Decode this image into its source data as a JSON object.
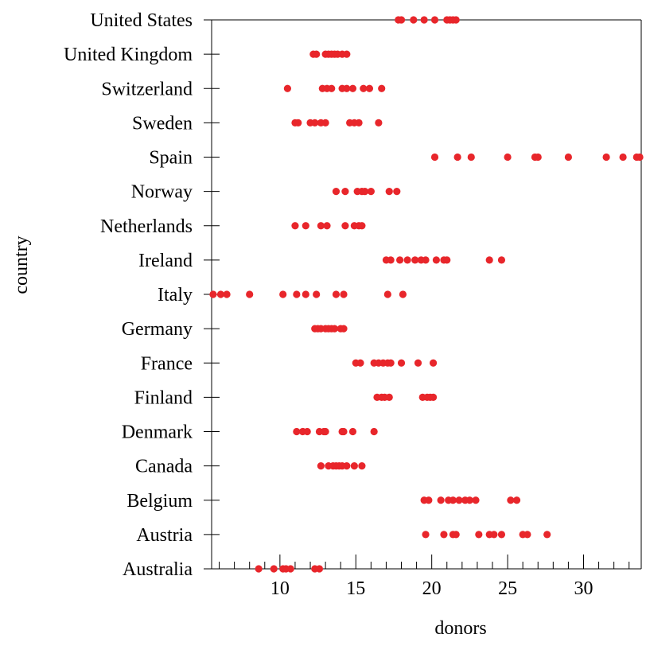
{
  "chart_data": {
    "type": "scatter",
    "xlabel": "donors",
    "ylabel": "country",
    "xlim": [
      5.5,
      33.8
    ],
    "x_major_ticks": [
      10,
      15,
      20,
      25,
      30
    ],
    "x_minor_step": 1,
    "categories": [
      "Australia",
      "Austria",
      "Belgium",
      "Canada",
      "Denmark",
      "Finland",
      "France",
      "Germany",
      "Italy",
      "Ireland",
      "Netherlands",
      "Norway",
      "Spain",
      "Sweden",
      "Switzerland",
      "United Kingdom",
      "United States"
    ],
    "point_color": "#e8262b",
    "series": [
      {
        "values": [
          [
            "United States",
            17.8
          ],
          [
            "United States",
            18.0
          ],
          [
            "United States",
            18.8
          ],
          [
            "United States",
            19.5
          ],
          [
            "United States",
            20.2
          ],
          [
            "United States",
            21.0
          ],
          [
            "United States",
            21.2
          ],
          [
            "United States",
            21.4
          ],
          [
            "United States",
            21.6
          ],
          [
            "United Kingdom",
            12.2
          ],
          [
            "United Kingdom",
            12.4
          ],
          [
            "United Kingdom",
            13.0
          ],
          [
            "United Kingdom",
            13.2
          ],
          [
            "United Kingdom",
            13.4
          ],
          [
            "United Kingdom",
            13.6
          ],
          [
            "United Kingdom",
            13.8
          ],
          [
            "United Kingdom",
            14.1
          ],
          [
            "United Kingdom",
            14.4
          ],
          [
            "Switzerland",
            10.5
          ],
          [
            "Switzerland",
            12.8
          ],
          [
            "Switzerland",
            13.1
          ],
          [
            "Switzerland",
            13.4
          ],
          [
            "Switzerland",
            14.1
          ],
          [
            "Switzerland",
            14.4
          ],
          [
            "Switzerland",
            14.8
          ],
          [
            "Switzerland",
            15.5
          ],
          [
            "Switzerland",
            15.9
          ],
          [
            "Switzerland",
            16.7
          ],
          [
            "Sweden",
            11.0
          ],
          [
            "Sweden",
            11.2
          ],
          [
            "Sweden",
            12.0
          ],
          [
            "Sweden",
            12.3
          ],
          [
            "Sweden",
            12.7
          ],
          [
            "Sweden",
            13.0
          ],
          [
            "Sweden",
            14.6
          ],
          [
            "Sweden",
            14.9
          ],
          [
            "Sweden",
            15.2
          ],
          [
            "Sweden",
            16.5
          ],
          [
            "Spain",
            20.2
          ],
          [
            "Spain",
            21.7
          ],
          [
            "Spain",
            22.6
          ],
          [
            "Spain",
            25.0
          ],
          [
            "Spain",
            26.8
          ],
          [
            "Spain",
            27.0
          ],
          [
            "Spain",
            29.0
          ],
          [
            "Spain",
            31.5
          ],
          [
            "Spain",
            32.6
          ],
          [
            "Spain",
            33.5
          ],
          [
            "Spain",
            33.7
          ],
          [
            "Norway",
            13.7
          ],
          [
            "Norway",
            14.3
          ],
          [
            "Norway",
            15.1
          ],
          [
            "Norway",
            15.4
          ],
          [
            "Norway",
            15.6
          ],
          [
            "Norway",
            16.0
          ],
          [
            "Norway",
            17.2
          ],
          [
            "Norway",
            17.7
          ],
          [
            "Netherlands",
            11.0
          ],
          [
            "Netherlands",
            11.7
          ],
          [
            "Netherlands",
            12.7
          ],
          [
            "Netherlands",
            13.1
          ],
          [
            "Netherlands",
            14.3
          ],
          [
            "Netherlands",
            14.9
          ],
          [
            "Netherlands",
            15.2
          ],
          [
            "Netherlands",
            15.4
          ],
          [
            "Ireland",
            17.0
          ],
          [
            "Ireland",
            17.3
          ],
          [
            "Ireland",
            17.9
          ],
          [
            "Ireland",
            18.4
          ],
          [
            "Ireland",
            18.9
          ],
          [
            "Ireland",
            19.3
          ],
          [
            "Ireland",
            19.6
          ],
          [
            "Ireland",
            20.3
          ],
          [
            "Ireland",
            20.8
          ],
          [
            "Ireland",
            21.0
          ],
          [
            "Ireland",
            23.8
          ],
          [
            "Ireland",
            24.6
          ],
          [
            "Italy",
            5.6
          ],
          [
            "Italy",
            6.1
          ],
          [
            "Italy",
            6.5
          ],
          [
            "Italy",
            8.0
          ],
          [
            "Italy",
            10.2
          ],
          [
            "Italy",
            11.1
          ],
          [
            "Italy",
            11.7
          ],
          [
            "Italy",
            12.4
          ],
          [
            "Italy",
            13.7
          ],
          [
            "Italy",
            14.2
          ],
          [
            "Italy",
            17.1
          ],
          [
            "Italy",
            18.1
          ],
          [
            "Germany",
            12.3
          ],
          [
            "Germany",
            12.5
          ],
          [
            "Germany",
            12.7
          ],
          [
            "Germany",
            13.0
          ],
          [
            "Germany",
            13.2
          ],
          [
            "Germany",
            13.4
          ],
          [
            "Germany",
            13.6
          ],
          [
            "Germany",
            14.0
          ],
          [
            "Germany",
            14.2
          ],
          [
            "France",
            15.0
          ],
          [
            "France",
            15.3
          ],
          [
            "France",
            16.2
          ],
          [
            "France",
            16.5
          ],
          [
            "France",
            16.8
          ],
          [
            "France",
            17.1
          ],
          [
            "France",
            17.3
          ],
          [
            "France",
            18.0
          ],
          [
            "France",
            19.1
          ],
          [
            "France",
            20.1
          ],
          [
            "Finland",
            16.4
          ],
          [
            "Finland",
            16.7
          ],
          [
            "Finland",
            16.9
          ],
          [
            "Finland",
            17.2
          ],
          [
            "Finland",
            19.4
          ],
          [
            "Finland",
            19.7
          ],
          [
            "Finland",
            19.9
          ],
          [
            "Finland",
            20.1
          ],
          [
            "Denmark",
            11.1
          ],
          [
            "Denmark",
            11.5
          ],
          [
            "Denmark",
            11.8
          ],
          [
            "Denmark",
            12.6
          ],
          [
            "Denmark",
            12.9
          ],
          [
            "Denmark",
            13.0
          ],
          [
            "Denmark",
            14.1
          ],
          [
            "Denmark",
            14.2
          ],
          [
            "Denmark",
            14.8
          ],
          [
            "Denmark",
            16.2
          ],
          [
            "Canada",
            12.7
          ],
          [
            "Canada",
            13.2
          ],
          [
            "Canada",
            13.5
          ],
          [
            "Canada",
            13.7
          ],
          [
            "Canada",
            13.9
          ],
          [
            "Canada",
            14.1
          ],
          [
            "Canada",
            14.4
          ],
          [
            "Canada",
            14.9
          ],
          [
            "Canada",
            15.4
          ],
          [
            "Belgium",
            19.5
          ],
          [
            "Belgium",
            19.8
          ],
          [
            "Belgium",
            20.6
          ],
          [
            "Belgium",
            21.1
          ],
          [
            "Belgium",
            21.4
          ],
          [
            "Belgium",
            21.8
          ],
          [
            "Belgium",
            22.2
          ],
          [
            "Belgium",
            22.5
          ],
          [
            "Belgium",
            22.9
          ],
          [
            "Belgium",
            25.2
          ],
          [
            "Belgium",
            25.6
          ],
          [
            "Austria",
            19.6
          ],
          [
            "Austria",
            20.8
          ],
          [
            "Austria",
            21.4
          ],
          [
            "Austria",
            21.6
          ],
          [
            "Austria",
            23.1
          ],
          [
            "Austria",
            23.8
          ],
          [
            "Austria",
            24.1
          ],
          [
            "Austria",
            24.6
          ],
          [
            "Austria",
            26.0
          ],
          [
            "Austria",
            26.3
          ],
          [
            "Austria",
            27.6
          ],
          [
            "Australia",
            8.6
          ],
          [
            "Australia",
            9.6
          ],
          [
            "Australia",
            10.2
          ],
          [
            "Australia",
            10.4
          ],
          [
            "Australia",
            10.7
          ],
          [
            "Australia",
            12.3
          ],
          [
            "Australia",
            12.6
          ]
        ]
      }
    ]
  }
}
